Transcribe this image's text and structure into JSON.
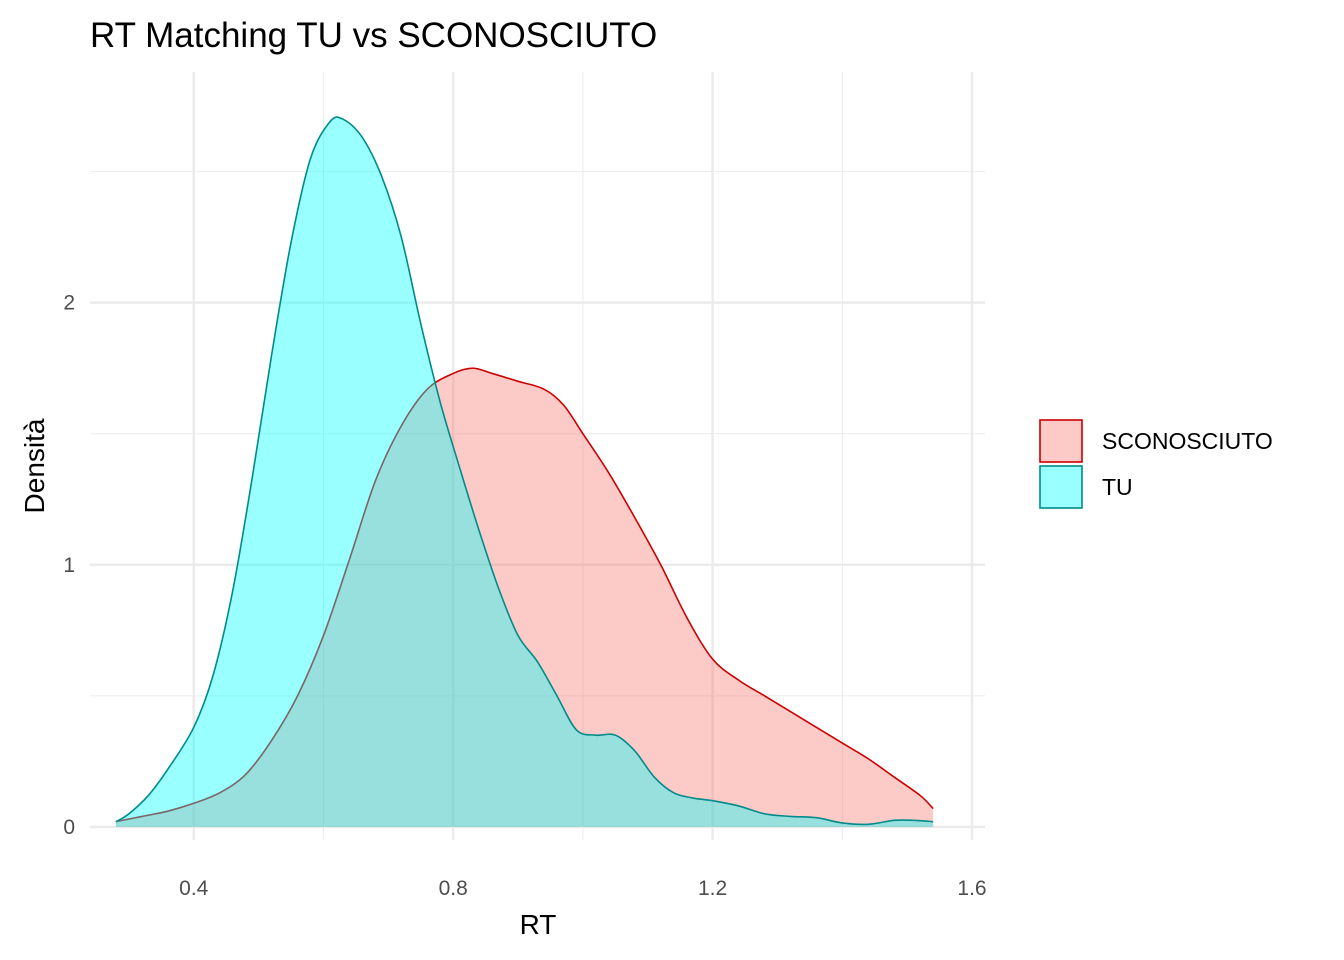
{
  "chart_data": {
    "type": "area",
    "title": "RT Matching TU vs SCONOSCIUTO",
    "xlabel": "RT",
    "ylabel": "Densità",
    "xlim": [
      0.24,
      1.62
    ],
    "ylim": [
      -0.05,
      2.88
    ],
    "x_ticks": [
      0.4,
      0.8,
      1.2,
      1.6
    ],
    "x_tick_labels": [
      "0.4",
      "0.8",
      "1.2",
      "1.6"
    ],
    "y_ticks": [
      0,
      1,
      2
    ],
    "y_tick_labels": [
      "0",
      "1",
      "2"
    ],
    "x_minor_ticks": [
      0.6,
      1.0,
      1.4
    ],
    "y_minor_ticks": [
      0.5,
      1.5,
      2.5
    ],
    "grid": true,
    "legend_position": "right",
    "series": [
      {
        "name": "SCONOSCIUTO",
        "fill": "#F8766D",
        "stroke": "#CC0000",
        "fill_opacity": 0.38,
        "points": [
          [
            0.28,
            0.02
          ],
          [
            0.32,
            0.04
          ],
          [
            0.36,
            0.06
          ],
          [
            0.4,
            0.09
          ],
          [
            0.44,
            0.13
          ],
          [
            0.48,
            0.2
          ],
          [
            0.52,
            0.33
          ],
          [
            0.56,
            0.5
          ],
          [
            0.6,
            0.73
          ],
          [
            0.64,
            1.02
          ],
          [
            0.68,
            1.32
          ],
          [
            0.72,
            1.53
          ],
          [
            0.76,
            1.67
          ],
          [
            0.8,
            1.73
          ],
          [
            0.83,
            1.75
          ],
          [
            0.86,
            1.73
          ],
          [
            0.9,
            1.7
          ],
          [
            0.94,
            1.67
          ],
          [
            0.97,
            1.61
          ],
          [
            1.0,
            1.5
          ],
          [
            1.04,
            1.35
          ],
          [
            1.08,
            1.18
          ],
          [
            1.12,
            1.0
          ],
          [
            1.16,
            0.8
          ],
          [
            1.2,
            0.64
          ],
          [
            1.24,
            0.56
          ],
          [
            1.28,
            0.5
          ],
          [
            1.32,
            0.44
          ],
          [
            1.36,
            0.38
          ],
          [
            1.4,
            0.32
          ],
          [
            1.44,
            0.26
          ],
          [
            1.48,
            0.19
          ],
          [
            1.52,
            0.12
          ],
          [
            1.54,
            0.07
          ]
        ]
      },
      {
        "name": "TU",
        "fill": "#00FFFF",
        "stroke": "#008B8B",
        "fill_opacity": 0.4,
        "points": [
          [
            0.28,
            0.02
          ],
          [
            0.3,
            0.05
          ],
          [
            0.33,
            0.12
          ],
          [
            0.36,
            0.22
          ],
          [
            0.4,
            0.38
          ],
          [
            0.43,
            0.58
          ],
          [
            0.46,
            0.9
          ],
          [
            0.49,
            1.33
          ],
          [
            0.52,
            1.8
          ],
          [
            0.55,
            2.23
          ],
          [
            0.58,
            2.55
          ],
          [
            0.61,
            2.69
          ],
          [
            0.63,
            2.7
          ],
          [
            0.66,
            2.63
          ],
          [
            0.69,
            2.48
          ],
          [
            0.72,
            2.25
          ],
          [
            0.75,
            1.92
          ],
          [
            0.78,
            1.62
          ],
          [
            0.81,
            1.37
          ],
          [
            0.84,
            1.13
          ],
          [
            0.87,
            0.91
          ],
          [
            0.9,
            0.73
          ],
          [
            0.93,
            0.63
          ],
          [
            0.96,
            0.5
          ],
          [
            0.99,
            0.37
          ],
          [
            1.02,
            0.35
          ],
          [
            1.05,
            0.35
          ],
          [
            1.08,
            0.29
          ],
          [
            1.11,
            0.19
          ],
          [
            1.14,
            0.13
          ],
          [
            1.17,
            0.11
          ],
          [
            1.2,
            0.1
          ],
          [
            1.24,
            0.08
          ],
          [
            1.28,
            0.05
          ],
          [
            1.32,
            0.04
          ],
          [
            1.36,
            0.035
          ],
          [
            1.4,
            0.015
          ],
          [
            1.44,
            0.01
          ],
          [
            1.48,
            0.025
          ],
          [
            1.51,
            0.025
          ],
          [
            1.54,
            0.02
          ]
        ]
      }
    ]
  }
}
